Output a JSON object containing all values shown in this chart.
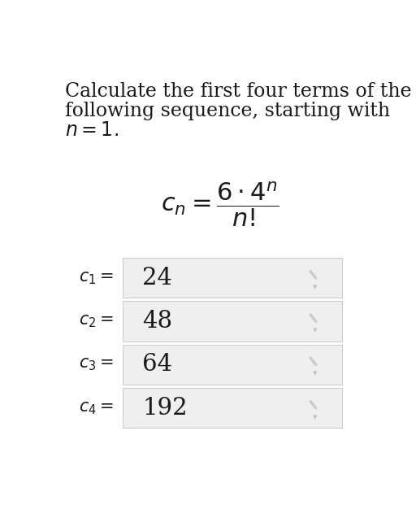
{
  "title_lines": [
    "Calculate the first four terms of the",
    "following sequence, starting with",
    "$n = 1.$"
  ],
  "terms": [
    {
      "sub": "1",
      "value": "24"
    },
    {
      "sub": "2",
      "value": "48"
    },
    {
      "sub": "3",
      "value": "64"
    },
    {
      "sub": "4",
      "value": "192"
    }
  ],
  "bg_color": "#ffffff",
  "box_bg": "#efefef",
  "box_border": "#cccccc",
  "text_color": "#1a1a1a",
  "icon_color": "#b0b0b0",
  "title_fontsize": 17.0,
  "formula_fontsize": 22,
  "term_label_fontsize": 15,
  "term_value_fontsize": 21
}
